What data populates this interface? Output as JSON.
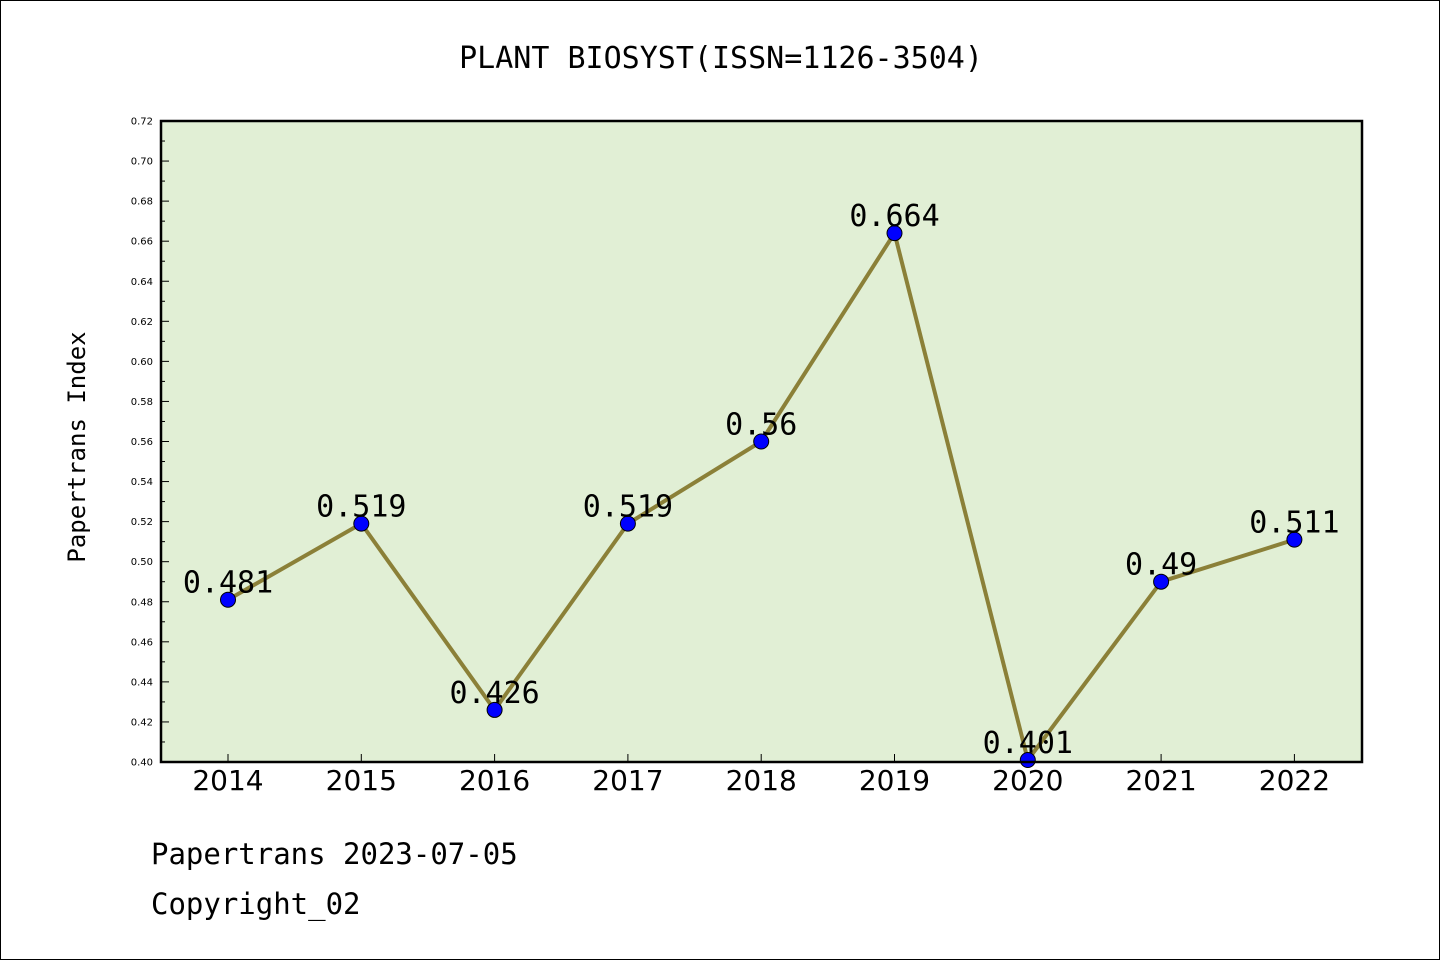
{
  "chart_data": {
    "type": "line",
    "title": "PLANT BIOSYST(ISSN=1126-3504)",
    "ylabel": "Papertrans Index",
    "xlabel": "",
    "categories": [
      "2014",
      "2015",
      "2016",
      "2017",
      "2018",
      "2019",
      "2020",
      "2021",
      "2022"
    ],
    "series": [
      {
        "values": [
          0.481,
          0.519,
          0.426,
          0.519,
          0.56,
          0.664,
          0.401,
          0.49,
          0.511
        ],
        "data_labels": [
          "0.481",
          "0.519",
          "0.426",
          "0.519",
          "0.56",
          "0.664",
          "0.401",
          "0.49",
          "0.511"
        ]
      }
    ],
    "ylim": [
      0.4,
      0.72
    ],
    "yticks": [
      "0.40",
      "0.42",
      "0.44",
      "0.46",
      "0.48",
      "0.50",
      "0.52",
      "0.54",
      "0.56",
      "0.58",
      "0.60",
      "0.62",
      "0.64",
      "0.66",
      "0.68",
      "0.70",
      "0.72"
    ],
    "grid": false,
    "colors": {
      "plot_background": "#e1efd5",
      "line": "#8b8038",
      "marker": "#0000ff"
    }
  },
  "footer": {
    "date_text": "Papertrans 2023-07-05",
    "copyright_text": "Copyright_02"
  }
}
